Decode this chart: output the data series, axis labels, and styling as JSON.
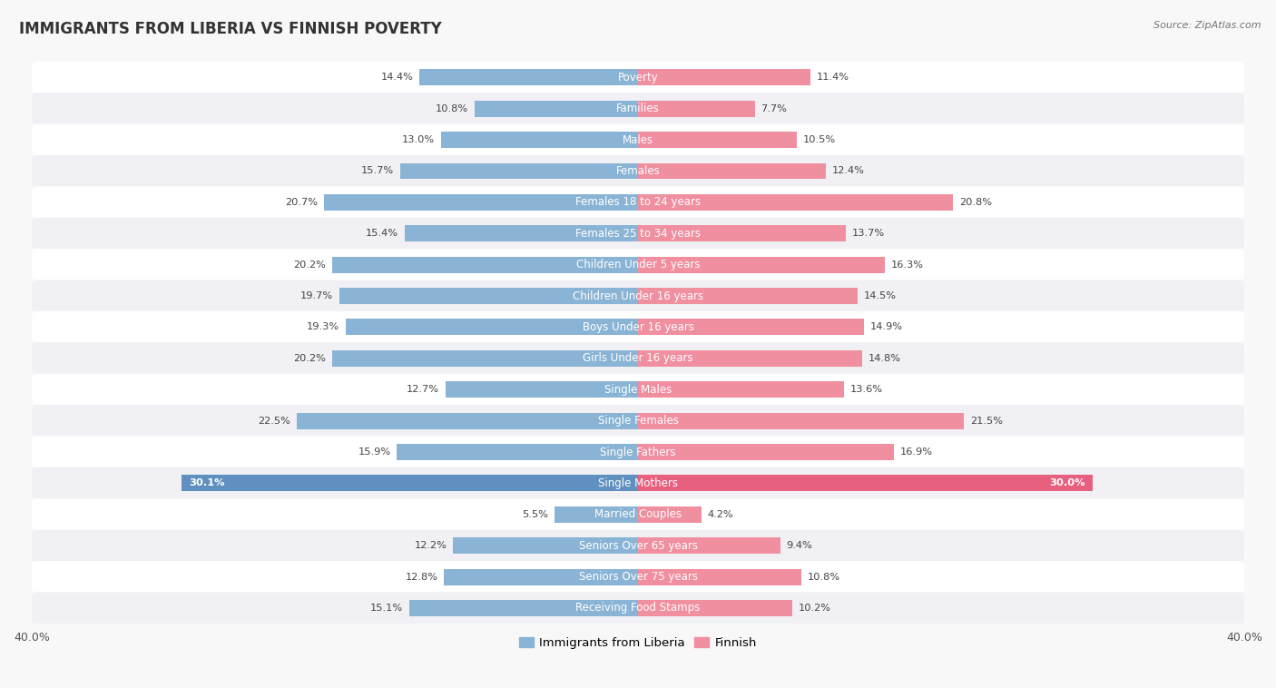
{
  "title": "IMMIGRANTS FROM LIBERIA VS FINNISH POVERTY",
  "source": "Source: ZipAtlas.com",
  "categories": [
    "Poverty",
    "Families",
    "Males",
    "Females",
    "Females 18 to 24 years",
    "Females 25 to 34 years",
    "Children Under 5 years",
    "Children Under 16 years",
    "Boys Under 16 years",
    "Girls Under 16 years",
    "Single Males",
    "Single Females",
    "Single Fathers",
    "Single Mothers",
    "Married Couples",
    "Seniors Over 65 years",
    "Seniors Over 75 years",
    "Receiving Food Stamps"
  ],
  "liberia_values": [
    14.4,
    10.8,
    13.0,
    15.7,
    20.7,
    15.4,
    20.2,
    19.7,
    19.3,
    20.2,
    12.7,
    22.5,
    15.9,
    30.1,
    5.5,
    12.2,
    12.8,
    15.1
  ],
  "finnish_values": [
    11.4,
    7.7,
    10.5,
    12.4,
    20.8,
    13.7,
    16.3,
    14.5,
    14.9,
    14.8,
    13.6,
    21.5,
    16.9,
    30.0,
    4.2,
    9.4,
    10.8,
    10.2
  ],
  "liberia_color": "#8ab4d5",
  "finnish_color": "#f08fa0",
  "liberia_highlight_color": "#6090c0",
  "finnish_highlight_color": "#e86080",
  "background_color": "#f8f8f8",
  "row_bg_light": "#f0f0f5",
  "row_bg_white": "#ffffff",
  "max_value": 40.0,
  "bar_height": 0.52,
  "legend_label_liberia": "Immigrants from Liberia",
  "legend_label_finnish": "Finnish",
  "title_fontsize": 12,
  "label_fontsize": 8.5,
  "value_fontsize": 8.2,
  "axis_label_fontsize": 9.0
}
